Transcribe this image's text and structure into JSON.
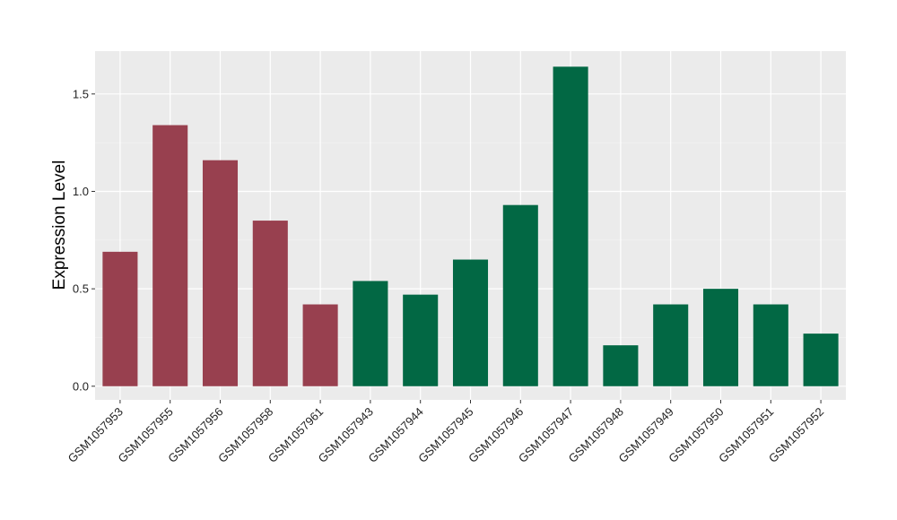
{
  "chart_data": {
    "type": "bar",
    "title": "",
    "xlabel": "",
    "ylabel": "Expression Level",
    "ylim": [
      -0.07,
      1.72
    ],
    "yticks": [
      0.0,
      0.5,
      1.0,
      1.5
    ],
    "ytick_labels": [
      "0.0",
      "0.5",
      "1.0",
      "1.5"
    ],
    "grid": true,
    "background": "#EBEBEB",
    "categories": [
      "GSM1057953",
      "GSM1057955",
      "GSM1057956",
      "GSM1057958",
      "GSM1057961",
      "GSM1057943",
      "GSM1057944",
      "GSM1057945",
      "GSM1057946",
      "GSM1057947",
      "GSM1057948",
      "GSM1057949",
      "GSM1057950",
      "GSM1057951",
      "GSM1057952"
    ],
    "values": [
      0.69,
      1.34,
      1.16,
      0.85,
      0.42,
      0.54,
      0.47,
      0.65,
      0.93,
      1.64,
      0.21,
      0.42,
      0.5,
      0.42,
      0.27
    ],
    "bar_colors": [
      "#98404F",
      "#98404F",
      "#98404F",
      "#98404F",
      "#98404F",
      "#026844",
      "#026844",
      "#026844",
      "#026844",
      "#026844",
      "#026844",
      "#026844",
      "#026844",
      "#026844",
      "#026844"
    ]
  }
}
